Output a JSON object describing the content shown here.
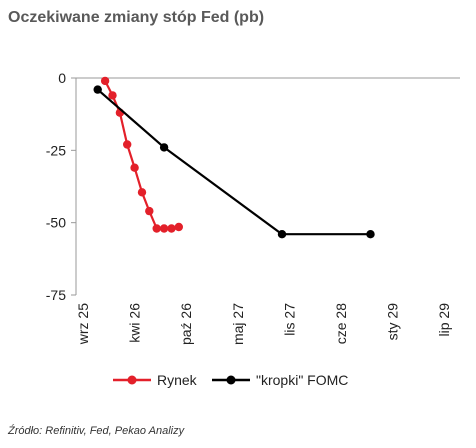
{
  "header": {
    "title": "Oczekiwane zmiany stóp Fed (pb)"
  },
  "footer": {
    "source": "Źródło: Refinitiv, Fed, Pekao Analizy"
  },
  "chart_data": {
    "type": "line",
    "title": "Oczekiwane zmiany stóp Fed (pb)",
    "xlabel": "",
    "ylabel": "",
    "x_ticks": [
      "wrz 25",
      "kwi 26",
      "paź 26",
      "maj 27",
      "lis 27",
      "cze 28",
      "sty 29",
      "lip 29"
    ],
    "ylim": [
      -75,
      0
    ],
    "y_ticks": [
      0,
      -25,
      -50,
      -75
    ],
    "grid": false,
    "legend_position": "bottom",
    "series": [
      {
        "name": "Rynek",
        "color": "#e3202a",
        "marker": "circle",
        "points": [
          [
            "2025-12",
            -1
          ],
          [
            "2026-01",
            -6
          ],
          [
            "2026-02",
            -12
          ],
          [
            "2026-03",
            -23
          ],
          [
            "2026-04",
            -31
          ],
          [
            "2026-05",
            -39.5
          ],
          [
            "2026-06",
            -46
          ],
          [
            "2026-07",
            -52
          ],
          [
            "2026-08",
            -52
          ],
          [
            "2026-09",
            -52
          ],
          [
            "2026-10",
            -51.5
          ]
        ]
      },
      {
        "name": "\"kropki\" FOMC",
        "color": "#000000",
        "marker": "circle",
        "points": [
          [
            "2025-11",
            -4
          ],
          [
            "2026-08",
            -24
          ],
          [
            "2027-12",
            -54
          ],
          [
            "2028-12",
            -54
          ]
        ]
      }
    ]
  }
}
